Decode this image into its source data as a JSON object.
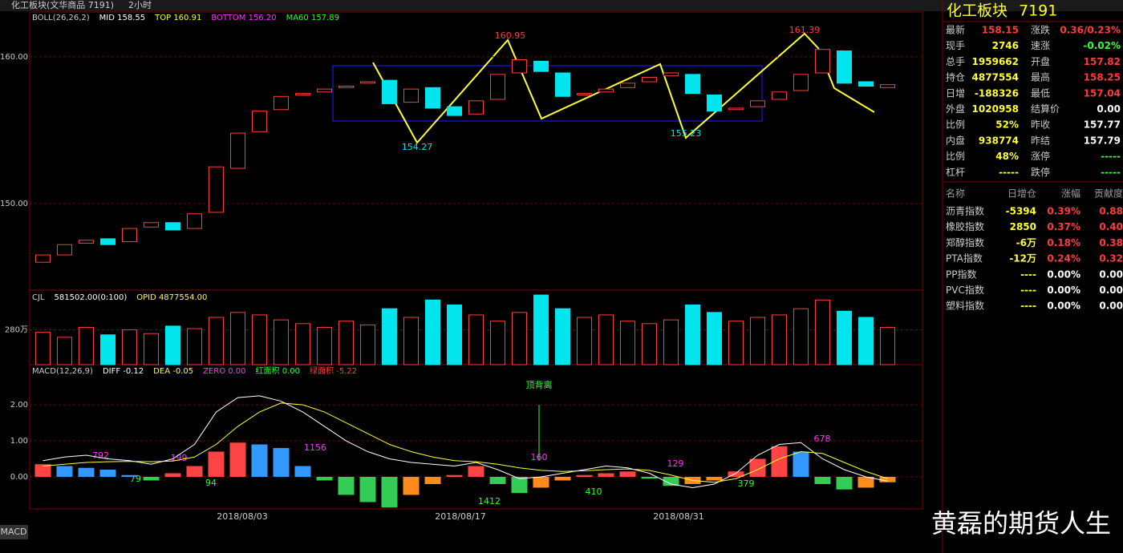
{
  "header": {
    "title": "化工板块(文华商品 7191)",
    "period": "2小时"
  },
  "chart_data": [
    {
      "type": "candlestick",
      "legend": [
        "BOLL(26,26,2)",
        "MID 158.55",
        "TOP 160.91",
        "BOTTOM 156.20",
        "MA60 157.89"
      ],
      "open": [
        146.0,
        146.5,
        147.3,
        147.6,
        147.4,
        148.4,
        148.7,
        148.3,
        149.4,
        152.4,
        154.9,
        156.4,
        157.4,
        157.6,
        157.9,
        158.2,
        158.4,
        156.9,
        157.9,
        156.6,
        156.1,
        157.1,
        158.9,
        159.7,
        158.9,
        157.4,
        157.6,
        157.9,
        158.3,
        158.7,
        158.8,
        157.4,
        156.4,
        156.6,
        157.1,
        157.7,
        158.9,
        160.4,
        158.3,
        157.9
      ],
      "close": [
        146.5,
        147.2,
        147.5,
        147.2,
        148.3,
        148.7,
        148.2,
        149.3,
        152.5,
        154.8,
        156.3,
        157.3,
        157.5,
        157.8,
        158.0,
        158.3,
        156.8,
        157.8,
        156.5,
        156.0,
        157.0,
        158.8,
        159.8,
        159.0,
        157.3,
        157.5,
        157.8,
        158.2,
        158.6,
        158.9,
        157.5,
        156.3,
        156.5,
        157.0,
        157.6,
        158.8,
        160.5,
        158.2,
        158.0,
        158.1
      ],
      "ylim": [
        144.1,
        163.05
      ],
      "yticks": [
        {
          "value": 150,
          "label": "150.00"
        },
        {
          "value": 160,
          "label": "160.00"
        }
      ],
      "annotations": [
        "160.95",
        "154.27",
        "155.23",
        "161.39"
      ],
      "up_color": "#ff3b3b",
      "down_color": "#00e5ee"
    },
    {
      "type": "volume",
      "legend": [
        "CJL",
        "581502.00(0:100)",
        "OPID 4877554.00"
      ],
      "values": [
        260,
        220,
        300,
        240,
        280,
        250,
        310,
        290,
        380,
        420,
        400,
        360,
        330,
        300,
        350,
        320,
        450,
        380,
        520,
        480,
        400,
        350,
        420,
        560,
        450,
        380,
        400,
        350,
        330,
        360,
        480,
        420,
        350,
        380,
        400,
        450,
        520,
        430,
        380,
        300
      ],
      "ylim": [
        0,
        580
      ],
      "yticks": [
        {
          "value": 280,
          "label": "280万"
        }
      ]
    },
    {
      "type": "macd",
      "legend": [
        "MACD(12,26,9)",
        "DIFF -0.12",
        "DEA -0.05",
        "ZERO 0.00",
        "红面积 0.00",
        "绿面积 -5.22"
      ],
      "values": [
        0.35,
        0.3,
        0.25,
        0.2,
        0.05,
        -0.1,
        0.1,
        0.3,
        0.7,
        0.95,
        0.9,
        0.8,
        0.3,
        -0.1,
        -0.5,
        -0.7,
        -0.85,
        -0.5,
        -0.2,
        0.05,
        0.3,
        -0.2,
        -0.45,
        -0.3,
        -0.1,
        0.05,
        0.1,
        0.15,
        -0.05,
        -0.25,
        -0.2,
        -0.1,
        0.15,
        0.5,
        0.85,
        0.7,
        -0.2,
        -0.35,
        -0.3,
        -0.15
      ],
      "diff": [
        0.45,
        0.55,
        0.6,
        0.5,
        0.45,
        0.35,
        0.5,
        0.9,
        1.8,
        2.2,
        2.25,
        2.1,
        1.8,
        1.4,
        1.0,
        0.7,
        0.5,
        0.4,
        0.35,
        0.3,
        0.4,
        0.2,
        -0.05,
        0.0,
        0.1,
        0.2,
        0.3,
        0.25,
        0.1,
        -0.2,
        -0.3,
        -0.2,
        0.1,
        0.6,
        0.9,
        0.95,
        0.5,
        0.2,
        0.0,
        -0.12
      ],
      "dea": [
        0.3,
        0.35,
        0.4,
        0.42,
        0.43,
        0.42,
        0.44,
        0.55,
        0.9,
        1.4,
        1.8,
        2.05,
        2.0,
        1.8,
        1.5,
        1.2,
        0.9,
        0.7,
        0.55,
        0.45,
        0.42,
        0.35,
        0.25,
        0.18,
        0.15,
        0.17,
        0.2,
        0.22,
        0.18,
        0.05,
        -0.1,
        -0.15,
        -0.05,
        0.2,
        0.5,
        0.7,
        0.65,
        0.4,
        0.15,
        -0.05
      ],
      "ylim": [
        -0.89,
        2.78
      ],
      "yticks": [
        {
          "value": 0,
          "label": "0.00"
        },
        {
          "value": 1,
          "label": "1.00"
        },
        {
          "value": 2,
          "label": "2.00"
        }
      ],
      "annotations": [
        "792",
        "199",
        "79",
        "94",
        "1156",
        "1412",
        "160",
        "410",
        "129",
        "379",
        "678",
        "顶背离"
      ],
      "x_labels": [
        "2018/08/03",
        "2018/08/17",
        "2018/08/31"
      ]
    }
  ],
  "quote": {
    "title": "化工板块",
    "code": "7191",
    "rows": [
      [
        "最新",
        "158.15",
        "涨跌",
        "0.36/0.23%"
      ],
      [
        "现手",
        "2746",
        "速涨",
        "-0.02%"
      ],
      [
        "总手",
        "1959662",
        "开盘",
        "157.82"
      ],
      [
        "持仓",
        "4877554",
        "最高",
        "158.25"
      ],
      [
        "日增",
        "-188326",
        "最低",
        "157.04"
      ],
      [
        "外盘",
        "1020958",
        "结算价",
        "0.00"
      ],
      [
        "比例",
        "52%",
        "昨收",
        "157.77"
      ],
      [
        "内盘",
        "938774",
        "昨结",
        "157.79"
      ],
      [
        "比例",
        "48%",
        "涨停",
        "-----"
      ],
      [
        "杠杆",
        "-----",
        "跌停",
        "-----"
      ]
    ],
    "table_header": [
      "名称",
      "日增仓",
      "涨幅",
      "贡献度"
    ],
    "table": [
      [
        "沥青指数",
        "-5394",
        "0.39%",
        "0.88"
      ],
      [
        "橡胶指数",
        "2850",
        "0.37%",
        "0.40"
      ],
      [
        "郑醇指数",
        "-6万",
        "0.18%",
        "0.38"
      ],
      [
        "PTA指数",
        "-12万",
        "0.24%",
        "0.32"
      ],
      [
        "PP指数",
        "----",
        "0.00%",
        "0.00"
      ],
      [
        "PVC指数",
        "----",
        "0.00%",
        "0.00"
      ],
      [
        "塑料指数",
        "----",
        "0.00%",
        "0.00"
      ]
    ]
  },
  "footer": {
    "tab": "MACD",
    "watermark": "黄磊的期货人生"
  }
}
